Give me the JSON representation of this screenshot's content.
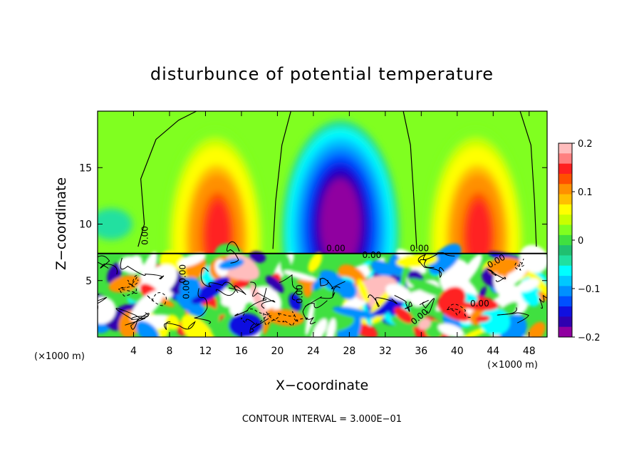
{
  "chart_data": {
    "type": "heatmap",
    "title": "disturbunce of potential temperature",
    "xlabel": "X−coordinate",
    "ylabel": "Z−coordinate",
    "x_unit_label": "(×1000 m)",
    "x_unit_label_right": "(×1000 m)",
    "xlim": [
      0,
      50
    ],
    "ylim": [
      0,
      20
    ],
    "x_ticks": [
      4,
      8,
      12,
      16,
      20,
      24,
      28,
      32,
      36,
      40,
      44,
      48
    ],
    "x_tick_labels": [
      "4",
      "8",
      "12",
      "16",
      "20",
      "24",
      "28",
      "32",
      "36",
      "40",
      "44",
      "48"
    ],
    "y_ticks": [
      5,
      10,
      15
    ],
    "y_tick_labels": [
      "5",
      "10",
      "15"
    ],
    "colorbar": {
      "min": -0.2,
      "max": 0.2,
      "ticks": [
        0.2,
        0.1,
        0,
        -0.1,
        -0.2
      ],
      "tick_labels": [
        "0.2",
        "0.1",
        "0",
        "−0.1",
        "−0.2"
      ],
      "colors": [
        "#ffbdbd",
        "#ff8080",
        "#ff2020",
        "#ff5000",
        "#ff9000",
        "#ffc000",
        "#ffff00",
        "#c8ff00",
        "#80ff20",
        "#40e040",
        "#20c070",
        "#20e0a0",
        "#00ffff",
        "#00c8ff",
        "#0090ff",
        "#0050ff",
        "#1010e0",
        "#3000b0",
        "#9000a0"
      ]
    },
    "contour_interval_text": "CONTOUR INTERVAL = 3.000E−01",
    "contour_labels": [
      "0.00",
      "0.00",
      "0.00",
      "0.00",
      "0.00",
      "0.00",
      "0.00",
      "0.00",
      "0.00",
      "0.00"
    ],
    "features": [
      {
        "kind": "warm",
        "x": 13,
        "z": 10,
        "amp": 0.13
      },
      {
        "kind": "cold",
        "x": 27,
        "z": 12,
        "amp": -0.2
      },
      {
        "kind": "warm",
        "x": 42,
        "z": 10,
        "amp": 0.13
      }
    ],
    "grid": false
  }
}
